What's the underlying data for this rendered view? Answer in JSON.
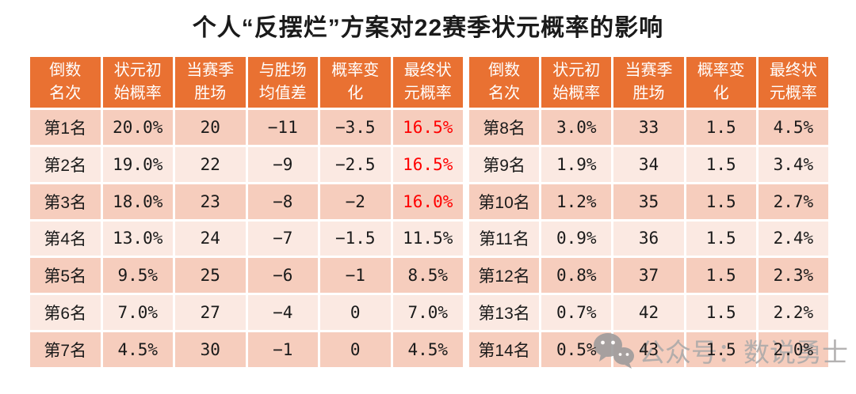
{
  "chart_data": {
    "type": "table",
    "title": "个人“反摆烂”方案对22赛季状元概率的影响",
    "left_table": {
      "headers": [
        {
          "line1": "倒数",
          "line2": "名次"
        },
        {
          "line1": "状元初",
          "line2": "始概率"
        },
        {
          "line1": "当赛季",
          "line2": "胜场"
        },
        {
          "line1": "与胜场",
          "line2": "均值差"
        },
        {
          "line1": "概率变",
          "line2": "化"
        },
        {
          "line1": "最终状",
          "line2": "元概率"
        }
      ],
      "rows": [
        {
          "rank": "第1名",
          "initial": "20.0%",
          "wins": "20",
          "diff": "−11",
          "change": "−3.5",
          "final": "16.5%",
          "final_red": true
        },
        {
          "rank": "第2名",
          "initial": "19.0%",
          "wins": "22",
          "diff": "−9",
          "change": "−2.5",
          "final": "16.5%",
          "final_red": true
        },
        {
          "rank": "第3名",
          "initial": "18.0%",
          "wins": "23",
          "diff": "−8",
          "change": "−2",
          "final": "16.0%",
          "final_red": true
        },
        {
          "rank": "第4名",
          "initial": "13.0%",
          "wins": "24",
          "diff": "−7",
          "change": "−1.5",
          "final": "11.5%",
          "final_red": false
        },
        {
          "rank": "第5名",
          "initial": "9.5%",
          "wins": "25",
          "diff": "−6",
          "change": "−1",
          "final": "8.5%",
          "final_red": false
        },
        {
          "rank": "第6名",
          "initial": "7.0%",
          "wins": "27",
          "diff": "−4",
          "change": "0",
          "final": "7.0%",
          "final_red": false
        },
        {
          "rank": "第7名",
          "initial": "4.5%",
          "wins": "30",
          "diff": "−1",
          "change": "0",
          "final": "4.5%",
          "final_red": false
        }
      ]
    },
    "right_table": {
      "headers": [
        {
          "line1": "倒数",
          "line2": "名次"
        },
        {
          "line1": "状元初",
          "line2": "始概率"
        },
        {
          "line1": "当赛季",
          "line2": "胜场"
        },
        {
          "line1": "概率变",
          "line2": "化"
        },
        {
          "line1": "最终状",
          "line2": "元概率"
        }
      ],
      "rows": [
        {
          "rank": "第8名",
          "initial": "3.0%",
          "wins": "33",
          "change": "1.5",
          "final": "4.5%",
          "final_red": false
        },
        {
          "rank": "第9名",
          "initial": "1.9%",
          "wins": "34",
          "change": "1.5",
          "final": "3.4%",
          "final_red": false
        },
        {
          "rank": "第10名",
          "initial": "1.2%",
          "wins": "35",
          "change": "1.5",
          "final": "2.7%",
          "final_red": false
        },
        {
          "rank": "第11名",
          "initial": "0.9%",
          "wins": "36",
          "change": "1.5",
          "final": "2.4%",
          "final_red": false
        },
        {
          "rank": "第12名",
          "initial": "0.8%",
          "wins": "37",
          "change": "1.5",
          "final": "2.3%",
          "final_red": false
        },
        {
          "rank": "第13名",
          "initial": "0.7%",
          "wins": "42",
          "change": "1.5",
          "final": "2.2%",
          "final_red": false
        },
        {
          "rank": "第14名",
          "initial": "0.5%",
          "wins": "43",
          "change": "1.5",
          "final": "2.0%",
          "final_red": false
        }
      ]
    }
  },
  "watermark": {
    "icon": "wechat-icon",
    "text": "公众号：数说勇士"
  },
  "colors": {
    "header_bg": "#E97132",
    "header_text": "#FFFFFF",
    "row_odd": "#F6CDBD",
    "row_even": "#FBE9E2",
    "highlight_red": "#FF0000",
    "text": "#1A1A1A",
    "watermark_gray": "#ACAAAA"
  }
}
